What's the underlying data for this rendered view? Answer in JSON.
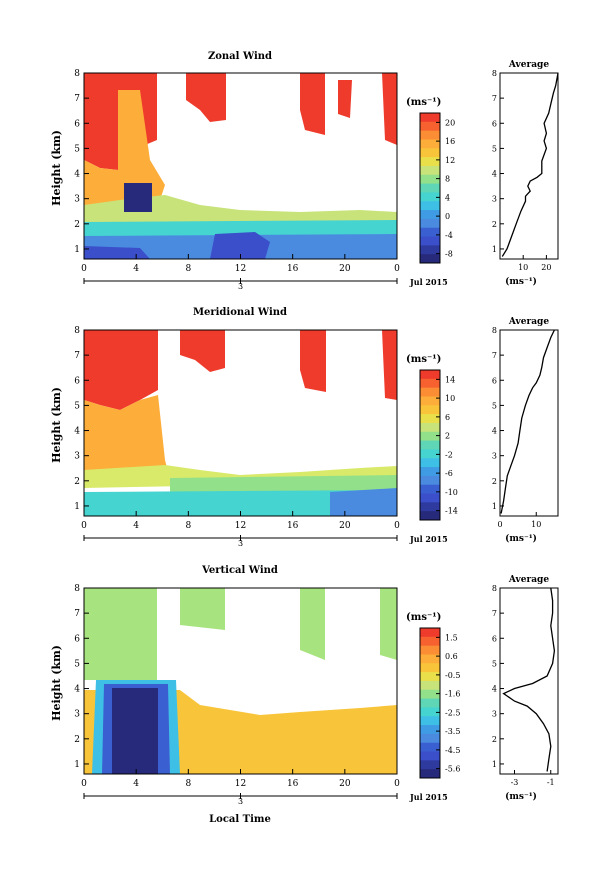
{
  "date_label": "Jul 2015",
  "day_label": "3",
  "bottom_xlabel": "Local Time",
  "chart_data": [
    {
      "type": "heatmap",
      "title": "Zonal Wind",
      "ylabel": "Height (km)",
      "x_ticks": [
        "0",
        "4",
        "8",
        "12",
        "16",
        "20",
        "0"
      ],
      "y_ticks": [
        "1",
        "2",
        "3",
        "4",
        "5",
        "6",
        "7",
        "8"
      ],
      "xlim": [
        0,
        24
      ],
      "ylim": [
        0.6,
        8
      ],
      "colorbar": {
        "unit": "(ms⁻¹)",
        "ticks": [
          "20",
          "16",
          "12",
          "8",
          "4",
          "0",
          "-4",
          "-8"
        ],
        "min": -10,
        "max": 22
      },
      "profile": {
        "title": "Average",
        "xlabel": "(ms⁻¹)",
        "x_ticks": [
          "10",
          "20"
        ],
        "xlim": [
          0,
          25
        ],
        "x": [
          1,
          3,
          5,
          7,
          9,
          11,
          11,
          13,
          12,
          13,
          16,
          18,
          18,
          20,
          19,
          20,
          19,
          21,
          22,
          23,
          24,
          25
        ],
        "y": [
          0.7,
          1.0,
          1.5,
          2.0,
          2.5,
          2.9,
          3.1,
          3.3,
          3.5,
          3.7,
          3.85,
          4.0,
          4.5,
          5.0,
          5.3,
          5.6,
          6.0,
          6.4,
          6.8,
          7.2,
          7.5,
          8.0
        ]
      }
    },
    {
      "type": "heatmap",
      "title": "Meridional Wind",
      "ylabel": "Height (km)",
      "x_ticks": [
        "0",
        "4",
        "8",
        "12",
        "16",
        "20",
        "0"
      ],
      "y_ticks": [
        "1",
        "2",
        "3",
        "4",
        "5",
        "6",
        "7",
        "8"
      ],
      "xlim": [
        0,
        24
      ],
      "ylim": [
        0.6,
        8
      ],
      "colorbar": {
        "unit": "(ms⁻¹)",
        "ticks": [
          "14",
          "10",
          "6",
          "2",
          "-2",
          "-6",
          "-10",
          "-14"
        ],
        "min": -16,
        "max": 16
      },
      "profile": {
        "title": "Average",
        "xlabel": "(ms⁻¹)",
        "x_ticks": [
          "0",
          "10"
        ],
        "xlim": [
          0,
          16
        ],
        "x": [
          0.3,
          1,
          1.5,
          2,
          3,
          4,
          5,
          5.5,
          6,
          7,
          8,
          9,
          10,
          11,
          11.5,
          12,
          13,
          14,
          15
        ],
        "y": [
          0.7,
          1.2,
          1.7,
          2.2,
          2.6,
          3.0,
          3.5,
          4.0,
          4.5,
          5.0,
          5.4,
          5.7,
          5.9,
          6.2,
          6.5,
          6.9,
          7.3,
          7.7,
          8.0
        ]
      }
    },
    {
      "type": "heatmap",
      "title": "Vertical Wind",
      "ylabel": "Height (km)",
      "xlabel": "Local Time",
      "x_ticks": [
        "0",
        "4",
        "8",
        "12",
        "16",
        "20",
        "0"
      ],
      "y_ticks": [
        "1",
        "2",
        "3",
        "4",
        "5",
        "6",
        "7",
        "8"
      ],
      "xlim": [
        0,
        24
      ],
      "ylim": [
        0.6,
        8
      ],
      "colorbar": {
        "unit": "(ms⁻¹)",
        "ticks": [
          "1.5",
          "0.6",
          "-0.5",
          "-1.6",
          "-2.5",
          "-3.5",
          "-4.5",
          "-5.6"
        ],
        "min": -6,
        "max": 2
      },
      "profile": {
        "title": "Average",
        "xlabel": "(ms⁻¹)",
        "x_ticks": [
          "-3",
          "-1"
        ],
        "xlim": [
          -3.8,
          -0.6
        ],
        "x": [
          -1.2,
          -1.1,
          -1.0,
          -1.1,
          -1.4,
          -1.8,
          -2.3,
          -3.0,
          -3.4,
          -3.6,
          -3.0,
          -2.0,
          -1.2,
          -0.9,
          -0.8,
          -0.9,
          -1.0,
          -0.9,
          -0.9,
          -1.0
        ],
        "y": [
          0.7,
          1.2,
          1.7,
          2.2,
          2.6,
          3.0,
          3.3,
          3.5,
          3.7,
          3.8,
          4.0,
          4.2,
          4.5,
          5.0,
          5.5,
          6.0,
          6.5,
          7.0,
          7.5,
          8.0
        ]
      }
    }
  ]
}
